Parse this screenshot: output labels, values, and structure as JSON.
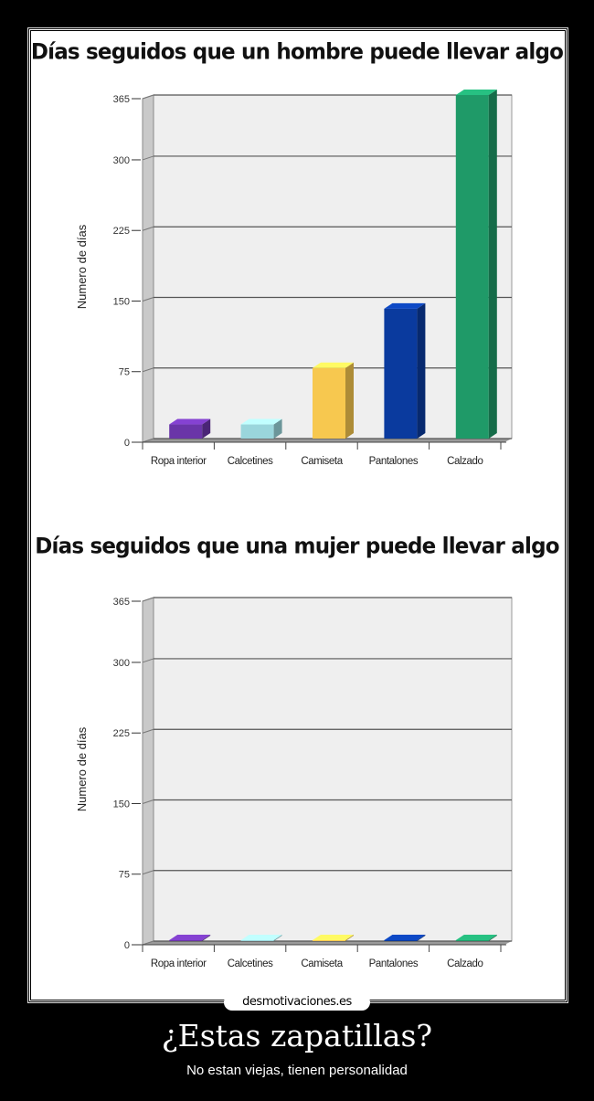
{
  "watermark": "desmotivaciones.es",
  "caption": {
    "title": "¿Estas zapatillas?",
    "subtitle": "No estan viejas, tienen personalidad"
  },
  "chart_data": [
    {
      "type": "bar",
      "title": "Días seguidos que un hombre puede llevar algo",
      "ylabel": "Numero  de  días",
      "xlabel": "",
      "categories": [
        "Ropa  interior",
        "Calcetines",
        "Camiseta",
        "Pantalones",
        "Calzado"
      ],
      "values": [
        15,
        15,
        75,
        138,
        365
      ],
      "colors": [
        "#6a35a8",
        "#9ad6dc",
        "#f7c84f",
        "#0a3a9e",
        "#1f9a68"
      ],
      "ylim": [
        0,
        365
      ],
      "yticks": [
        "0",
        "75",
        "150",
        "225",
        "300",
        "365"
      ],
      "grid": true
    },
    {
      "type": "bar",
      "title": "Días seguidos que una mujer puede llevar algo",
      "ylabel": "Numero  de  días",
      "xlabel": "",
      "categories": [
        "Ropa  interior",
        "Calcetines",
        "Camiseta",
        "Pantalones",
        "Calzado"
      ],
      "values": [
        1,
        1,
        1,
        1,
        1
      ],
      "colors": [
        "#6a35a8",
        "#9ad6dc",
        "#f7c84f",
        "#0a3a9e",
        "#1f9a68"
      ],
      "ylim": [
        0,
        365
      ],
      "yticks": [
        "0",
        "75",
        "150",
        "225",
        "300",
        "365"
      ],
      "grid": true
    }
  ]
}
